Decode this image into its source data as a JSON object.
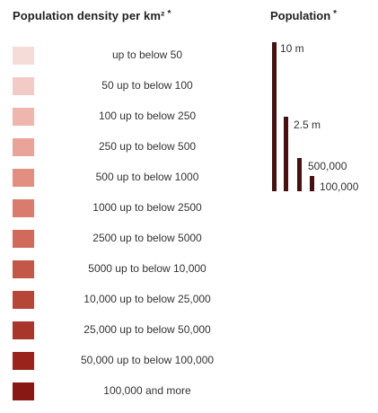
{
  "density_legend": {
    "title": "Population density per km²",
    "asterisk": "*",
    "items": [
      {
        "label": "up to below 50",
        "color": "#f6dcd9"
      },
      {
        "label": "50 up to below 100",
        "color": "#f3cbc6"
      },
      {
        "label": "100 up to below 250",
        "color": "#efb6ae"
      },
      {
        "label": "250 up to below 500",
        "color": "#e9a398"
      },
      {
        "label": "500 up to below 1000",
        "color": "#e28f82"
      },
      {
        "label": "1000 up to below 2500",
        "color": "#da7c6d"
      },
      {
        "label": "2500 up to below 5000",
        "color": "#d06a5a"
      },
      {
        "label": "5000 up to below 10,000",
        "color": "#c45848"
      },
      {
        "label": "10,000 up to below 25,000",
        "color": "#b64738"
      },
      {
        "label": "25,000 up to below 50,000",
        "color": "#a9362a"
      },
      {
        "label": "50,000 up to below 100,000",
        "color": "#9a241c"
      },
      {
        "label": "100,000 and more",
        "color": "#871813"
      }
    ]
  },
  "population_legend": {
    "title": "Population",
    "asterisk": "*",
    "bar_color": "#4a1010",
    "items": [
      {
        "label": "10 m"
      },
      {
        "label": "2.5 m"
      },
      {
        "label": "500,000"
      },
      {
        "label": "100,000"
      }
    ]
  }
}
